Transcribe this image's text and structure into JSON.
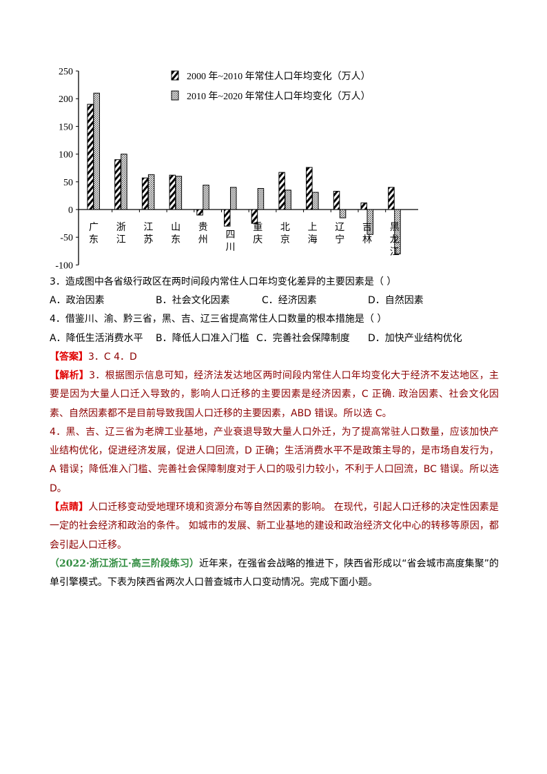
{
  "chart_data": {
    "type": "bar",
    "categories": [
      "广东",
      "浙江",
      "江苏",
      "山东",
      "贵州",
      "四川",
      "重庆",
      "北京",
      "上海",
      "辽宁",
      "吉林",
      "黑龙江"
    ],
    "series": [
      {
        "name": "2000 年~2010 年常住人口年均变化（万人）",
        "pattern": "diagonal-hatch",
        "values": [
          190,
          90,
          57,
          62,
          -10,
          -30,
          -25,
          67,
          76,
          33,
          12,
          40
        ]
      },
      {
        "name": "2010 年~2020 年常住人口年均变化（万人）",
        "pattern": "crosshatch",
        "values": [
          210,
          100,
          63,
          60,
          44,
          40,
          38,
          35,
          31,
          -15,
          -45,
          -80
        ]
      }
    ],
    "yticks": [
      "250",
      "200",
      "150",
      "100",
      "50",
      "0",
      "-50",
      "-100"
    ],
    "ylim": [
      -100,
      250
    ],
    "legend": "top-right",
    "grid": false
  },
  "q3": {
    "stem": "3．造成图中各省级行政区在两时间段内常住人口年均变化差异的主要因素是（   ）",
    "options": [
      "A．政治因素",
      "B．社会文化因素",
      "C．经济因素",
      "D．自然因素"
    ]
  },
  "q4": {
    "stem": "4．借鉴川、渝、黔三省，黑、吉、辽三省提高常住人口数量的根本措施是（   ）",
    "options": [
      "A．降低生活消费水平",
      "B．降低人口准入门槛",
      "C．完善社会保障制度",
      "D．加快产业结构优化"
    ]
  },
  "answer": {
    "label": "【答案】",
    "text": "3．C   4．D"
  },
  "analysis": {
    "label": "【解析】",
    "p1": "3．根据图示信息可知，经济法发达地区两时间段内常住人口年均变化大于经济不发达地区，主要是因为大量人口迁入导致的，影响人口迁移的主要因素是经济因素，C 正确. 政治因素、社会文化因素、自然因素都不是目前导致我国人口迁移的主要因素，ABD 错误。所以选 C。",
    "p2": "4．黑、吉、辽三省为老牌工业基地，产业衰退导致大量人口外迁，为了提高常驻人口数量，应该加快产业结构优化，促进经济发展，促进人口回流，D 正确；生活消费水平不是政策主导的，是市场自发行为，A 错误；降低准入门槛、完善社会保障制度对于人口的吸引力较小，不利于人口回流，BC 错误。所以选 D。"
  },
  "tip": {
    "label": "【点睛】",
    "text": "人口迁移变动受地理环境和资源分布等自然因素的影响。 在现代，引起人口迁移的决定性因素是一定的社会经济和政治的条件。 如城市的发展、新工业基地的建设和政治经济文化中心的转移等原因，都会引起人口迁移。"
  },
  "next": {
    "source": "（2022·浙江浙江·高三阶段练习）",
    "text": "近年来，在强省会战略的推进下，陕西省形成以“省会城市高度集聚”的单引擎模式。下表为陕西省两次人口普查城市人口变动情况。完成下面小题。"
  }
}
